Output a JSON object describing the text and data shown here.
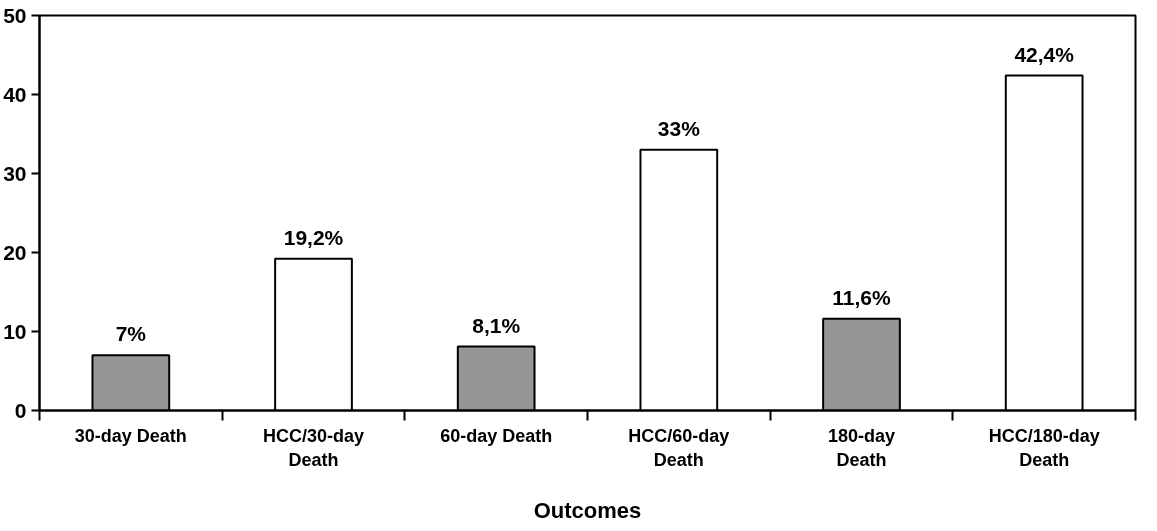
{
  "chart_data": {
    "type": "bar",
    "xlabel": "Outcomes",
    "categories": [
      "30-day Death",
      "HCC/30-day Death",
      "60-day Death",
      "HCC/60-day Death",
      "180-day Death",
      "HCC/180-day Death"
    ],
    "values": [
      7,
      19.2,
      8.1,
      33,
      11.6,
      42.4
    ],
    "colors": [
      "#969696",
      "#ffffff",
      "#969696",
      "#ffffff",
      "#969696",
      "#ffffff"
    ],
    "value_labels": [
      "7%",
      "19,2%",
      "8,1%",
      "33%",
      "11,6%",
      "42,4%"
    ],
    "ylim": [
      0,
      50
    ],
    "yticks": [
      0,
      10,
      20,
      30,
      40,
      50
    ],
    "grid": false
  }
}
